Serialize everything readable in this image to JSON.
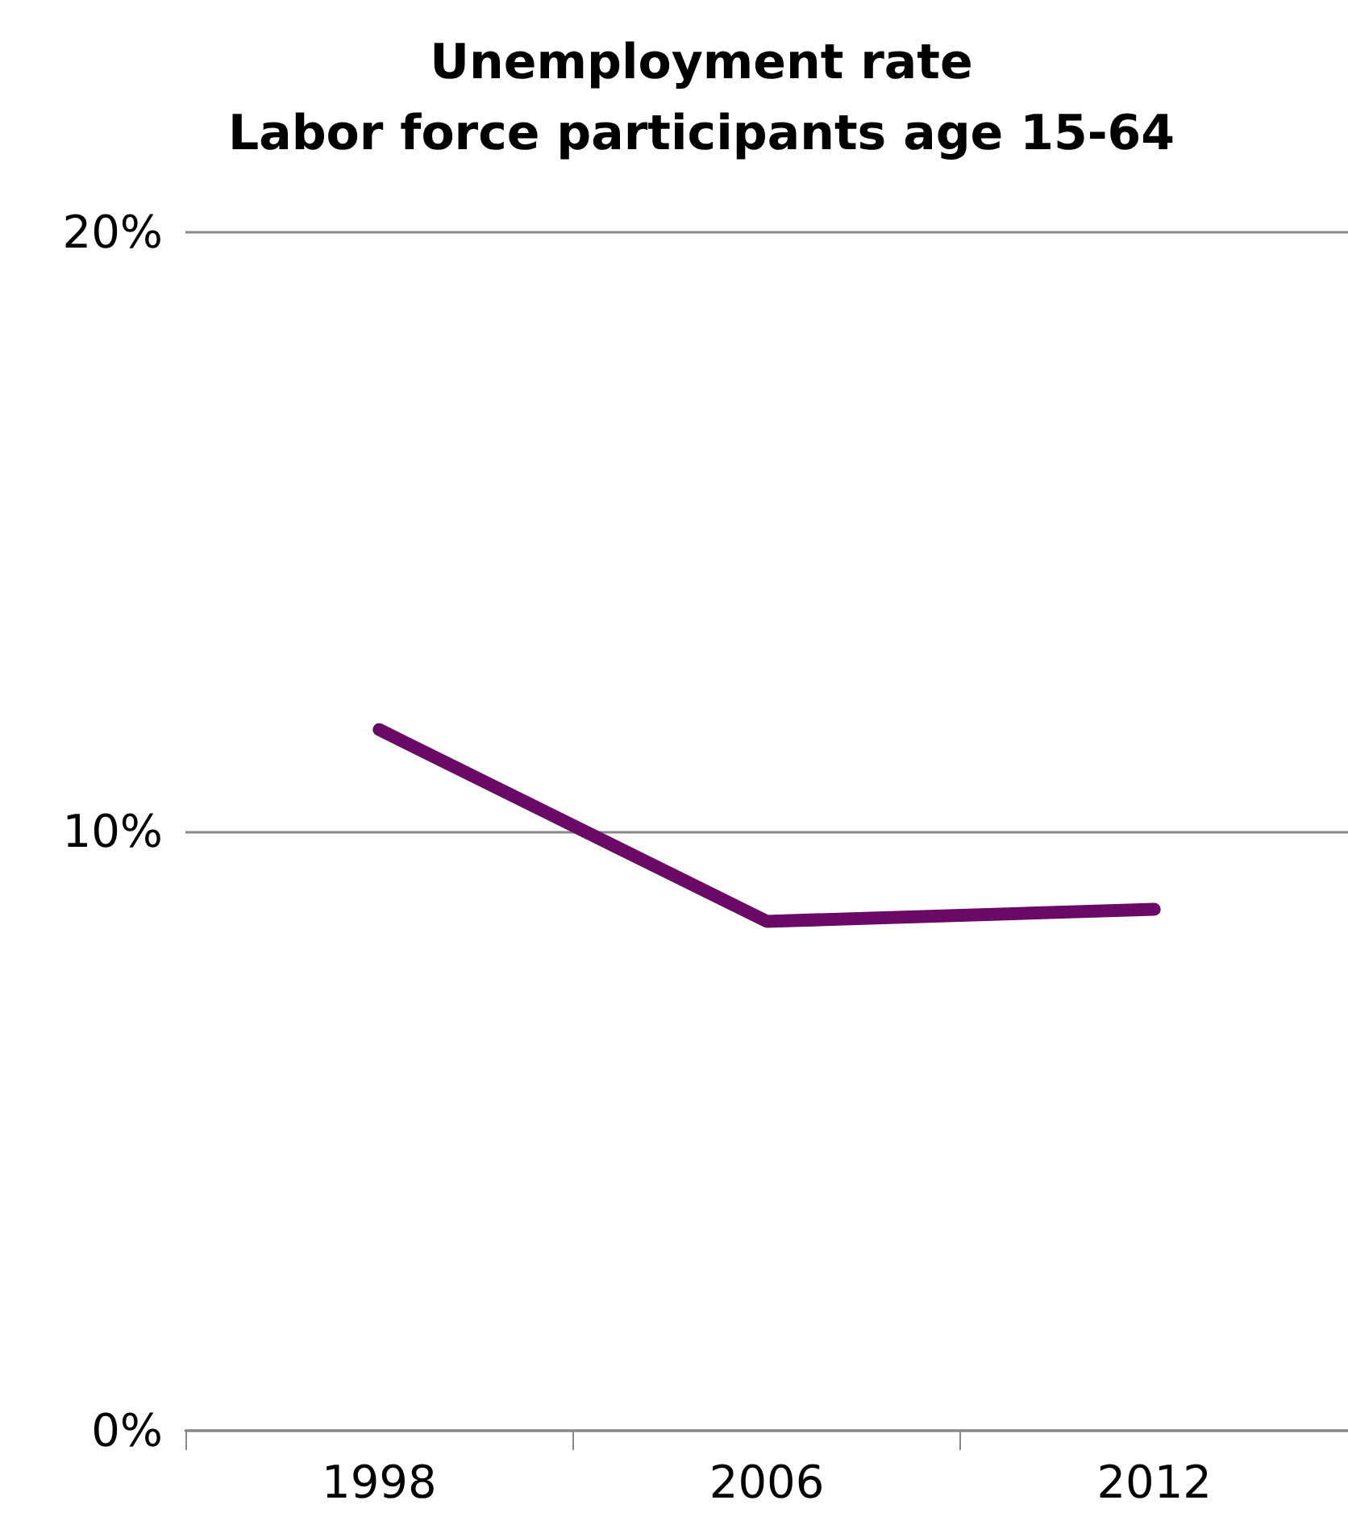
{
  "chart_data": {
    "type": "line",
    "title": "Unemployment rate\nLabor force participants age 15-64",
    "categories": [
      "1998",
      "2006",
      "2012"
    ],
    "series": [
      {
        "color": "#6a0a66",
        "values": [
          11.7,
          8.5,
          8.7
        ]
      }
    ],
    "ylim": [
      0,
      20
    ],
    "yticks": [
      {
        "value": 0,
        "label": "0%"
      },
      {
        "value": 10,
        "label": "10%"
      },
      {
        "value": 20,
        "label": "20%"
      }
    ],
    "grid": "y",
    "line_style": "solid"
  }
}
